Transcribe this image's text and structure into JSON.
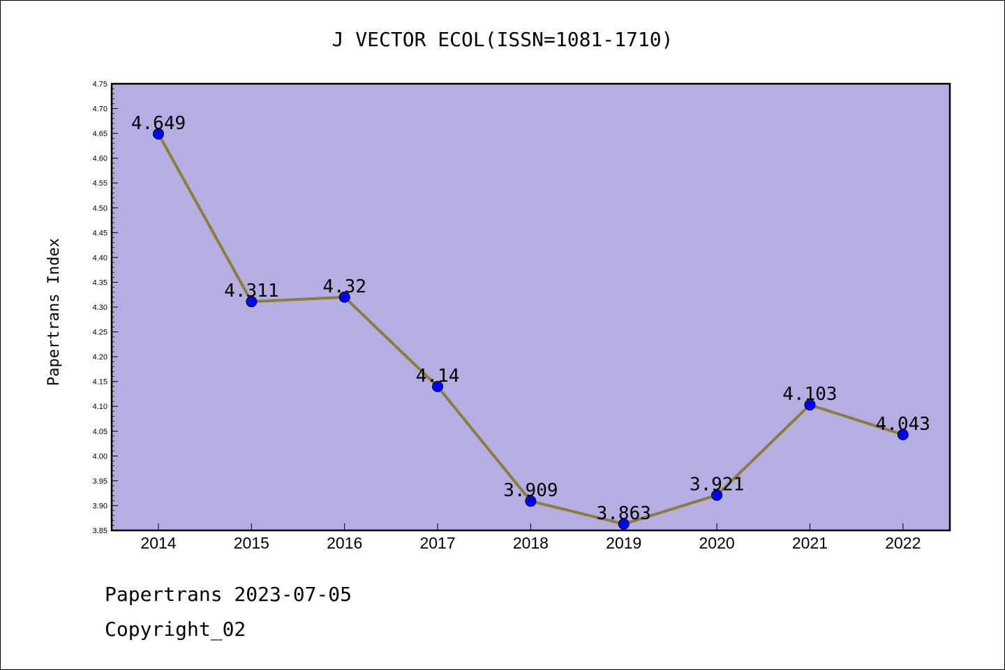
{
  "footer": {
    "line1": "Papertrans 2023-07-05",
    "line2": "Copyright_02"
  },
  "colors": {
    "plot_background": "#b4aee2",
    "line": "#8b7d3a",
    "marker": "#0000ff"
  },
  "chart_data": {
    "type": "line",
    "title": "J VECTOR ECOL(ISSN=1081-1710)",
    "xlabel": "",
    "ylabel": "Papertrans Index",
    "categories": [
      "2014",
      "2015",
      "2016",
      "2017",
      "2018",
      "2019",
      "2020",
      "2021",
      "2022"
    ],
    "values": [
      4.649,
      4.311,
      4.32,
      4.14,
      3.909,
      3.863,
      3.921,
      4.103,
      4.043
    ],
    "data_labels": [
      "4.649",
      "4.311",
      "4.32",
      "4.14",
      "3.909",
      "3.863",
      "3.921",
      "4.103",
      "4.043"
    ],
    "ylim": [
      3.85,
      4.75
    ],
    "yticks": [
      "3.85",
      "3.90",
      "3.95",
      "4.00",
      "4.05",
      "4.10",
      "4.15",
      "4.20",
      "4.25",
      "4.30",
      "4.35",
      "4.40",
      "4.45",
      "4.50",
      "4.55",
      "4.60",
      "4.65",
      "4.70",
      "4.75"
    ],
    "grid": false,
    "legend": "none"
  }
}
